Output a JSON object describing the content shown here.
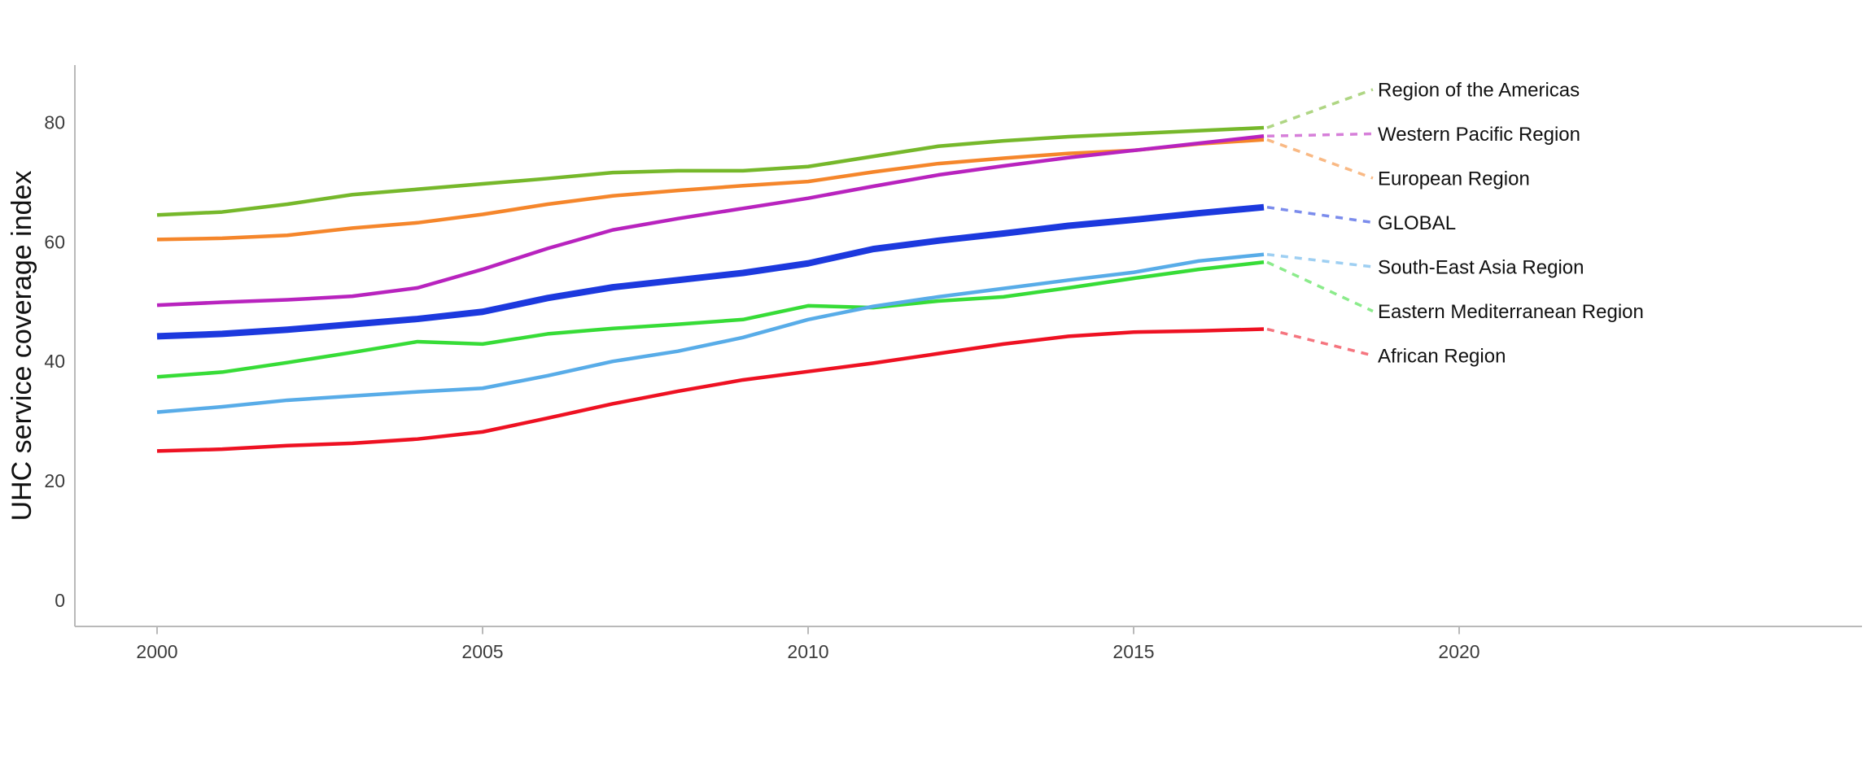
{
  "chart_data": {
    "type": "line",
    "title": "",
    "xlabel": "",
    "ylabel": "UHC service coverage index",
    "x": [
      2000,
      2001,
      2002,
      2003,
      2004,
      2005,
      2006,
      2007,
      2008,
      2009,
      2010,
      2011,
      2012,
      2013,
      2014,
      2015,
      2016,
      2017
    ],
    "x_ticks": [
      2000,
      2005,
      2010,
      2015,
      2020
    ],
    "y_ticks": [
      0,
      20,
      40,
      60,
      80
    ],
    "xlim": [
      1998.75,
      2026.2
    ],
    "ylim": [
      0,
      89
    ],
    "grid": false,
    "legend_position": "right-edge-labels-with-dotted-leaders",
    "axis_color": "#b9b9b9",
    "series": [
      {
        "name": "Region of the Americas",
        "color": "#76B82B",
        "thickness": "normal",
        "values": [
          64.5,
          65.0,
          66.3,
          67.9,
          68.8,
          69.7,
          70.6,
          71.6,
          71.9,
          71.9,
          72.6,
          74.3,
          76.0,
          76.9,
          77.6,
          78.1,
          78.6,
          79.1
        ]
      },
      {
        "name": "Western Pacific Region",
        "color": "#B823BE",
        "thickness": "normal",
        "values": [
          49.4,
          49.9,
          50.3,
          50.9,
          52.3,
          55.4,
          58.9,
          62.0,
          63.9,
          65.6,
          67.3,
          69.3,
          71.2,
          72.7,
          74.1,
          75.3,
          76.5,
          77.7
        ]
      },
      {
        "name": "European Region",
        "color": "#F5862B",
        "thickness": "normal",
        "values": [
          60.4,
          60.6,
          61.1,
          62.3,
          63.2,
          64.6,
          66.3,
          67.7,
          68.6,
          69.4,
          70.1,
          71.7,
          73.1,
          74.0,
          74.8,
          75.3,
          76.4,
          77.1
        ]
      },
      {
        "name": "GLOBAL",
        "color": "#1C39DE",
        "thickness": "thick",
        "values": [
          44.2,
          44.6,
          45.3,
          46.2,
          47.1,
          48.3,
          50.6,
          52.4,
          53.6,
          54.8,
          56.4,
          58.8,
          60.2,
          61.4,
          62.7,
          63.7,
          64.8,
          65.8
        ]
      },
      {
        "name": "South-East Asia Region",
        "color": "#58ACE8",
        "thickness": "normal",
        "values": [
          31.5,
          32.4,
          33.5,
          34.2,
          34.9,
          35.5,
          37.6,
          40.0,
          41.7,
          44.0,
          47.0,
          49.2,
          50.8,
          52.2,
          53.6,
          54.9,
          56.8,
          57.9
        ]
      },
      {
        "name": "Eastern Mediterranean Region",
        "color": "#37DC37",
        "thickness": "normal",
        "values": [
          37.4,
          38.2,
          39.8,
          41.5,
          43.3,
          42.9,
          44.6,
          45.5,
          46.2,
          47.0,
          49.3,
          49.0,
          50.1,
          50.8,
          52.3,
          53.9,
          55.4,
          56.6
        ]
      },
      {
        "name": "African Region",
        "color": "#EE1122",
        "thickness": "normal",
        "values": [
          25.0,
          25.3,
          25.9,
          26.3,
          27.0,
          28.2,
          30.5,
          32.9,
          35.0,
          36.9,
          38.3,
          39.7,
          41.3,
          42.9,
          44.2,
          44.9,
          45.1,
          45.4
        ]
      }
    ]
  }
}
